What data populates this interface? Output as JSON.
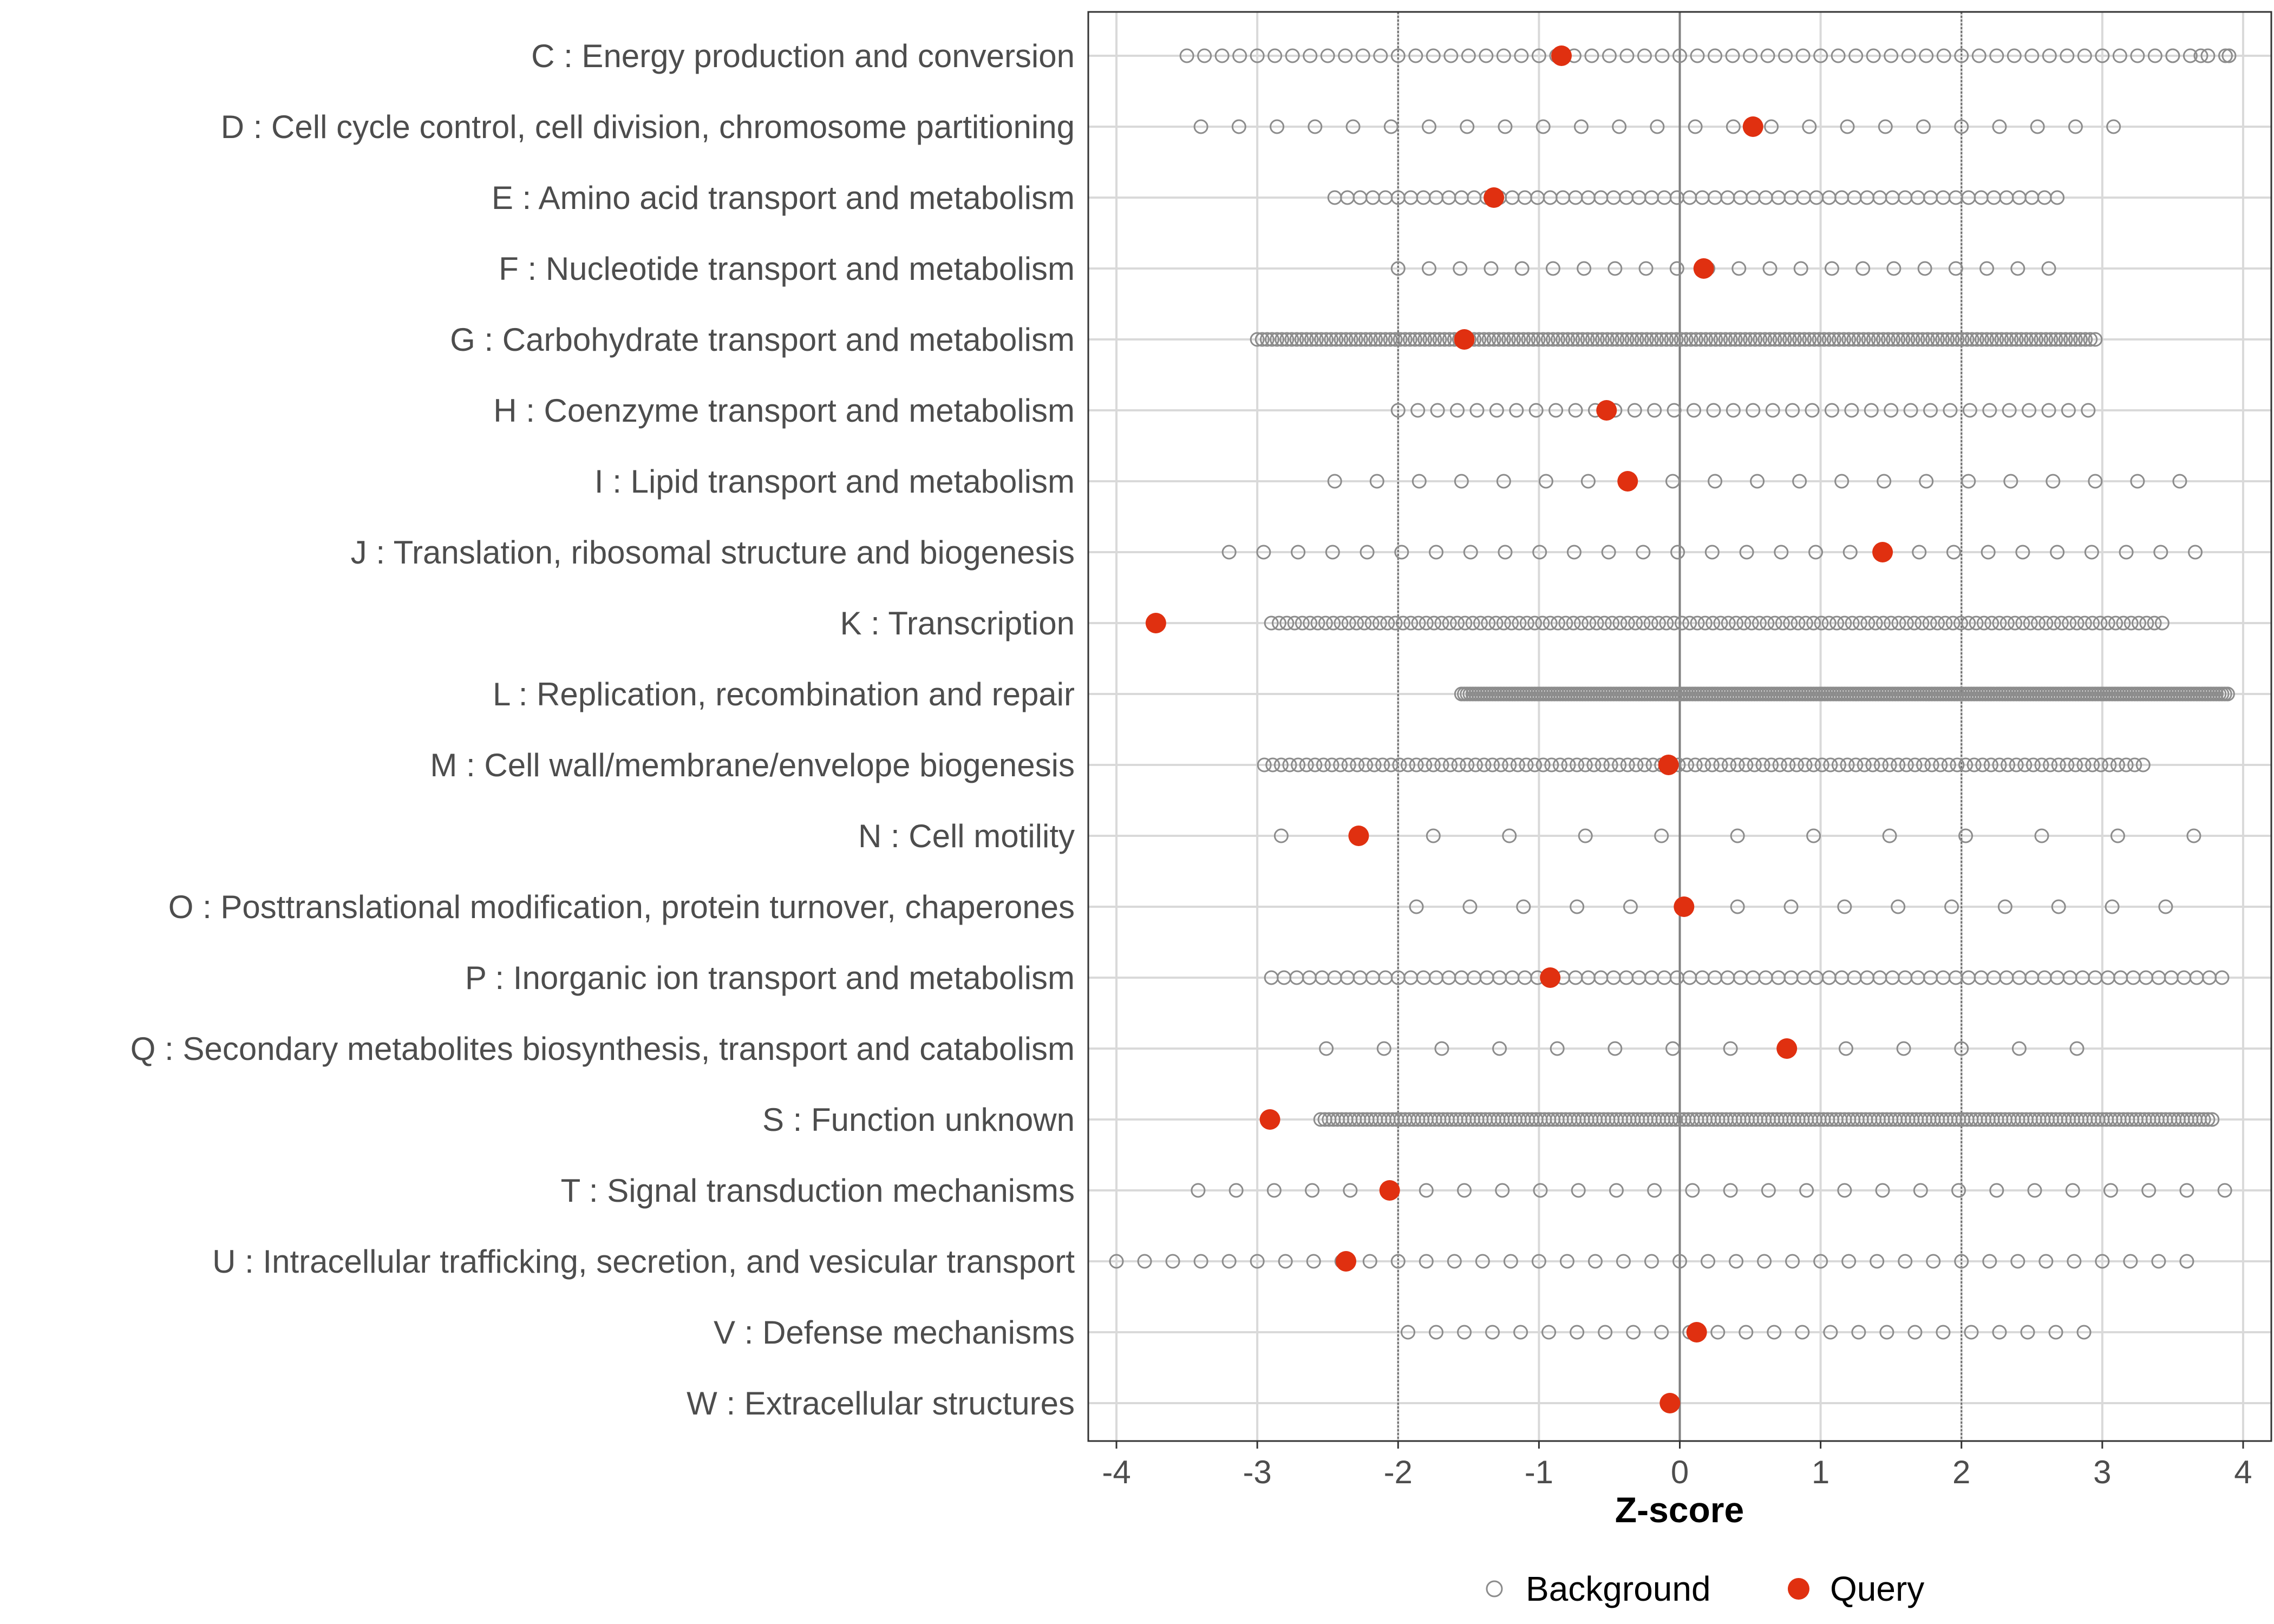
{
  "chart_data": {
    "type": "scatter",
    "title": "",
    "xlabel": "Z-score",
    "ylabel": "",
    "xlim": [
      -4.2,
      4.2
    ],
    "xticks": [
      -4,
      -3,
      -2,
      -1,
      0,
      1,
      2,
      3,
      4
    ],
    "xtick_labels": [
      "-4",
      "-3",
      "-2",
      "-1",
      "0",
      "1",
      "2",
      "3",
      "4"
    ],
    "reference_lines": [
      -2,
      0,
      2
    ],
    "grid": true,
    "legend_position": "bottom",
    "legend": [
      {
        "name": "Background",
        "marker": "open-circle",
        "color": "#8c8c8c"
      },
      {
        "name": "Query",
        "marker": "filled-circle",
        "color": "#e03010"
      }
    ],
    "categories": [
      {
        "label": "C : Energy production and conversion",
        "query": -0.84,
        "background": {
          "min": -3.5,
          "max": 3.9,
          "step": 0.125,
          "extra": [
            3.5,
            3.7,
            3.9
          ]
        }
      },
      {
        "label": "D : Cell cycle control, cell division, chromosome partitioning",
        "query": 0.52,
        "background": {
          "min": -3.4,
          "max": 3.3,
          "step": 0.27
        }
      },
      {
        "label": "E : Amino acid transport and metabolism",
        "query": -1.32,
        "background": {
          "min": -2.45,
          "max": 2.75,
          "step": 0.09
        }
      },
      {
        "label": "F : Nucleotide transport and metabolism",
        "query": 0.17,
        "background": {
          "min": -2.0,
          "max": 2.8,
          "step": 0.22
        }
      },
      {
        "label": "G : Carbohydrate transport and metabolism",
        "query": -1.53,
        "background": {
          "min": -3.0,
          "max": 2.95,
          "step": 0.035
        }
      },
      {
        "label": "H : Coenzyme transport and metabolism",
        "query": -0.52,
        "background": {
          "min": -2.0,
          "max": 3.0,
          "step": 0.14
        }
      },
      {
        "label": "I : Lipid transport and metabolism",
        "query": -0.37,
        "background": {
          "min": -2.45,
          "max": 3.55,
          "step": 0.3
        }
      },
      {
        "label": "J : Translation, ribosomal structure and biogenesis",
        "query": 1.44,
        "background": {
          "min": -3.2,
          "max": 3.9,
          "step": 0.245
        }
      },
      {
        "label": "K : Transcription",
        "query": -3.72,
        "background": {
          "min": -2.9,
          "max": 3.45,
          "step": 0.055
        }
      },
      {
        "label": "L : Replication, recombination and repair",
        "query": null,
        "background": {
          "min": -1.55,
          "max": 3.9,
          "step": 0.02
        }
      },
      {
        "label": "M : Cell wall/membrane/envelope biogenesis",
        "query": -0.08,
        "background": {
          "min": -2.95,
          "max": 3.3,
          "step": 0.06
        }
      },
      {
        "label": "N : Cell motility",
        "query": -2.28,
        "background": {
          "min": -2.83,
          "max": 3.65,
          "step": 0.54
        }
      },
      {
        "label": "O : Posttranslational modification, protein turnover, chaperones",
        "query": 0.03,
        "background": {
          "min": -1.87,
          "max": 3.78,
          "step": 0.38
        }
      },
      {
        "label": "P : Inorganic ion transport and metabolism",
        "query": -0.92,
        "background": {
          "min": -2.9,
          "max": 3.85,
          "step": 0.09
        }
      },
      {
        "label": "Q : Secondary metabolites biosynthesis, transport and catabolism",
        "query": 0.76,
        "background": {
          "min": -2.51,
          "max": 3.21,
          "step": 0.41
        }
      },
      {
        "label": "S : Function unknown",
        "query": -2.91,
        "background": {
          "min": -2.55,
          "max": 3.78,
          "step": 0.03
        }
      },
      {
        "label": "T : Signal transduction mechanisms",
        "query": -2.06,
        "background": {
          "min": -3.42,
          "max": 3.9,
          "step": 0.27
        }
      },
      {
        "label": "U : Intracellular trafficking, secretion, and vesicular transport",
        "query": -2.37,
        "background": {
          "min": -4.0,
          "max": 3.65,
          "step": 0.2
        }
      },
      {
        "label": "V : Defense mechanisms",
        "query": 0.12,
        "background": {
          "min": -1.93,
          "max": 2.99,
          "step": 0.2
        }
      },
      {
        "label": "W : Extracellular structures",
        "query": -0.07,
        "background": null
      }
    ]
  }
}
